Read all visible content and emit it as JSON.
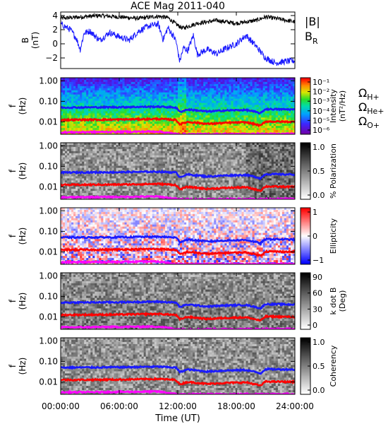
{
  "chart_data": {
    "title": "ACE Mag 2011-040",
    "type": "line",
    "x_label": "Time (UT)",
    "x_ticks": [
      "00:00:00",
      "06:00:00",
      "12:00:00",
      "18:00:00",
      "24:00:00"
    ],
    "x_range_hours": [
      0,
      24
    ],
    "panels": [
      {
        "kind": "line",
        "ylabel": "B",
        "yunit": "(nT)",
        "ylim": [
          -3.5,
          4.5
        ],
        "yticks": [
          -2,
          0,
          2,
          4
        ],
        "legend": [
          {
            "label": "|B|",
            "sub": "",
            "color": "#000000"
          },
          {
            "label": "B",
            "sub": "R",
            "color": "#1a1aff"
          }
        ],
        "series": [
          {
            "name": "|B|",
            "color": "#000000",
            "knots": [
              [
                0,
                3.6
              ],
              [
                2,
                3.8
              ],
              [
                4,
                4.0
              ],
              [
                6,
                3.8
              ],
              [
                8,
                3.6
              ],
              [
                10,
                3.9
              ],
              [
                11,
                3.7
              ],
              [
                11.8,
                2.8
              ],
              [
                12.5,
                2.2
              ],
              [
                14,
                2.9
              ],
              [
                16,
                3.3
              ],
              [
                18,
                2.9
              ],
              [
                20,
                3.3
              ],
              [
                21,
                3.8
              ],
              [
                22,
                3.6
              ],
              [
                24,
                3.1
              ]
            ],
            "noise": 0.3
          },
          {
            "name": "B",
            "color": "#1a1aff",
            "knots": [
              [
                0,
                2.8
              ],
              [
                1,
                2.0
              ],
              [
                1.6,
                0.8
              ],
              [
                2,
                -0.8
              ],
              [
                2.4,
                1.5
              ],
              [
                3,
                1.8
              ],
              [
                4,
                0.5
              ],
              [
                5,
                1.6
              ],
              [
                6,
                1.0
              ],
              [
                7,
                0.5
              ],
              [
                8,
                1.8
              ],
              [
                9,
                2.5
              ],
              [
                10,
                2.8
              ],
              [
                10.5,
                0.6
              ],
              [
                11,
                2.3
              ],
              [
                11.8,
                0.5
              ],
              [
                12.2,
                -2.5
              ],
              [
                12.6,
                -0.5
              ],
              [
                13,
                -1.0
              ],
              [
                13.6,
                1.2
              ],
              [
                14,
                -1.5
              ],
              [
                15,
                -0.8
              ],
              [
                16,
                -1.4
              ],
              [
                17,
                -0.6
              ],
              [
                18,
                0.0
              ],
              [
                19,
                1.2
              ],
              [
                20,
                -0.3
              ],
              [
                21,
                -2.0
              ],
              [
                22,
                -2.7
              ],
              [
                23,
                -2.5
              ],
              [
                24,
                -2.4
              ]
            ],
            "noise": 0.45
          }
        ]
      },
      {
        "kind": "spectrogram",
        "scheme": "rainbow",
        "ylabel": "f",
        "yunit": "(Hz)",
        "yticks": [
          "1.00",
          "0.10",
          "0.01"
        ],
        "colorbar": {
          "labels": [
            "10⁻¹",
            "10⁻²",
            "10⁻³",
            "10⁻⁴",
            "10⁻⁵",
            "10⁻⁶"
          ],
          "title": "Intensity",
          "unit": "(nT²/Hz)"
        },
        "legend": [
          {
            "label": "Ω",
            "sub": "H+",
            "color": "#1a1aff"
          },
          {
            "label": "Ω",
            "sub": "He+",
            "color": "#ff0000"
          },
          {
            "label": "Ω",
            "sub": "O+",
            "color": "#ff00ff"
          }
        ]
      },
      {
        "kind": "spectrogram",
        "scheme": "gray",
        "ylabel": "f",
        "yunit": "(Hz)",
        "yticks": [
          "1.00",
          "0.10",
          "0.01"
        ],
        "colorbar": {
          "labels": [
            "1.0",
            "0.5",
            "0.0"
          ],
          "title": "% Polarization",
          "unit": ""
        }
      },
      {
        "kind": "spectrogram",
        "scheme": "bwr",
        "ylabel": "f",
        "yunit": "(Hz)",
        "yticks": [
          "1.00",
          "0.10",
          "0.01"
        ],
        "colorbar": {
          "labels": [
            "1",
            "0",
            "−1"
          ],
          "title": "Ellipticity",
          "unit": ""
        }
      },
      {
        "kind": "spectrogram",
        "scheme": "gray",
        "ylabel": "f",
        "yunit": "(Hz)",
        "yticks": [
          "1.00",
          "0.10",
          "0.01"
        ],
        "colorbar": {
          "labels": [
            "90",
            "60",
            "30",
            "0"
          ],
          "title": "k dot B",
          "unit": "(Deg)"
        }
      },
      {
        "kind": "spectrogram",
        "scheme": "gray",
        "ylabel": "f",
        "yunit": "(Hz)",
        "yticks": [
          "1.00",
          "0.10",
          "0.01"
        ],
        "colorbar": {
          "labels": [
            "1.0",
            "0.5",
            "0.0"
          ],
          "title": "Coherency",
          "unit": ""
        }
      }
    ],
    "gyrofrequency_lines": [
      {
        "name": "ΩH+",
        "color": "#1a1aff",
        "knots": [
          [
            0,
            0.05
          ],
          [
            6,
            0.052
          ],
          [
            10,
            0.055
          ],
          [
            11.8,
            0.05
          ],
          [
            12.2,
            0.03
          ],
          [
            13,
            0.04
          ],
          [
            15,
            0.032
          ],
          [
            17,
            0.036
          ],
          [
            19,
            0.038
          ],
          [
            20.5,
            0.026
          ],
          [
            21,
            0.042
          ],
          [
            24,
            0.04
          ]
        ]
      },
      {
        "name": "ΩHe+",
        "color": "#ff0000",
        "knots": [
          [
            0,
            0.0125
          ],
          [
            6,
            0.013
          ],
          [
            10,
            0.014
          ],
          [
            11.8,
            0.0125
          ],
          [
            12.2,
            0.0075
          ],
          [
            13,
            0.01
          ],
          [
            15,
            0.008
          ],
          [
            17,
            0.009
          ],
          [
            19,
            0.0095
          ],
          [
            20.5,
            0.0065
          ],
          [
            21,
            0.0105
          ],
          [
            24,
            0.01
          ]
        ]
      },
      {
        "name": "ΩO+",
        "color": "#ff00ff",
        "knots": [
          [
            0,
            0.0031
          ],
          [
            10,
            0.0034
          ],
          [
            12,
            0.0025
          ],
          [
            24,
            0.0026
          ]
        ]
      }
    ],
    "f_axis_range_hz": [
      0.0025,
      1.4
    ]
  }
}
